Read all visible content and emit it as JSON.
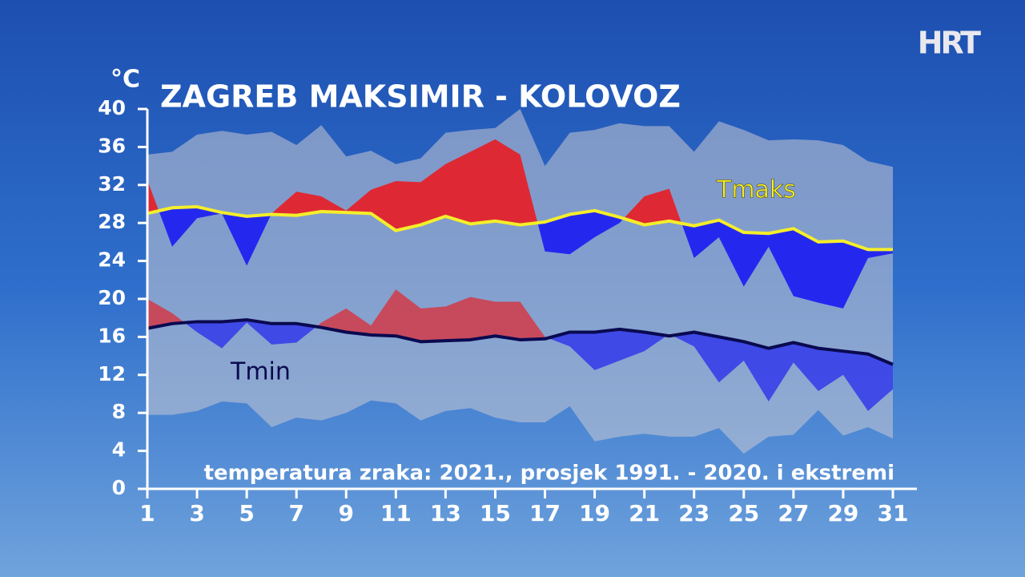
{
  "chart_data": {
    "type": "line",
    "title": "ZAGREB MAKSIMIR - KOLOVOZ",
    "subtitle": "temperatura zraka: 2021., prosjek 1991. - 2020. i ekstremi",
    "y_label": "°C",
    "logo": "HRT",
    "x": [
      1,
      2,
      3,
      4,
      5,
      6,
      7,
      8,
      9,
      10,
      11,
      12,
      13,
      14,
      15,
      16,
      17,
      18,
      19,
      20,
      21,
      22,
      23,
      24,
      25,
      26,
      27,
      28,
      29,
      30,
      31
    ],
    "xlim": [
      1,
      31
    ],
    "xticks": [
      1,
      3,
      5,
      7,
      9,
      11,
      13,
      15,
      17,
      19,
      21,
      23,
      25,
      27,
      29,
      31
    ],
    "ylim": [
      0,
      40
    ],
    "yticks": [
      0,
      4,
      8,
      12,
      16,
      20,
      24,
      28,
      32,
      36,
      40
    ],
    "above_color": "#e3232b",
    "below_color": "#1f22f0",
    "band_color": "#c8c8d2",
    "series": [
      {
        "name": "Tmaks",
        "color": "#f5ee2a",
        "values": [
          29.0,
          29.6,
          29.7,
          29.1,
          28.7,
          28.9,
          28.8,
          29.2,
          29.1,
          29.0,
          27.2,
          27.8,
          28.7,
          27.9,
          28.2,
          27.8,
          28.1,
          28.9,
          29.3,
          28.6,
          27.8,
          28.2,
          27.7,
          28.3,
          27.0,
          26.9,
          27.4,
          26.0,
          26.1,
          25.2,
          25.2
        ],
        "values_2021": [
          32.5,
          25.5,
          28.5,
          29.0,
          23.5,
          29.0,
          31.3,
          30.8,
          29.3,
          31.5,
          32.4,
          32.3,
          34.2,
          35.5,
          36.8,
          35.2,
          25.0,
          24.7,
          26.5,
          28.0,
          30.8,
          31.6,
          24.3,
          26.5,
          21.3,
          25.5,
          20.3,
          19.6,
          19.0,
          24.3,
          24.8
        ],
        "extreme": [
          35.2,
          35.5,
          37.3,
          37.7,
          37.3,
          37.6,
          36.2,
          38.3,
          35.0,
          35.6,
          34.2,
          34.8,
          37.5,
          37.8,
          38.0,
          40.0,
          34.0,
          37.5,
          37.8,
          38.5,
          38.2,
          38.2,
          35.5,
          38.7,
          37.8,
          36.7,
          36.8,
          36.7,
          36.2,
          34.5,
          33.9
        ]
      },
      {
        "name": "Tmin",
        "color": "#0a0a50",
        "values": [
          16.9,
          17.4,
          17.6,
          17.6,
          17.8,
          17.4,
          17.4,
          17.0,
          16.5,
          16.2,
          16.1,
          15.5,
          15.6,
          15.7,
          16.1,
          15.7,
          15.8,
          16.5,
          16.5,
          16.8,
          16.5,
          16.1,
          16.5,
          16.0,
          15.5,
          14.8,
          15.4,
          14.8,
          14.5,
          14.2,
          13.1
        ],
        "values_2021": [
          20.0,
          18.5,
          16.5,
          14.8,
          17.5,
          15.2,
          15.4,
          17.5,
          19.0,
          17.2,
          21.0,
          19.0,
          19.2,
          20.2,
          19.7,
          19.7,
          16.0,
          15.0,
          12.5,
          13.5,
          14.5,
          16.3,
          15.0,
          11.2,
          13.5,
          9.2,
          13.3,
          10.3,
          12.0,
          8.2,
          10.5
        ],
        "extreme": [
          7.8,
          7.8,
          8.2,
          9.2,
          9.0,
          6.5,
          7.5,
          7.2,
          8.0,
          9.3,
          9.0,
          7.2,
          8.2,
          8.5,
          7.5,
          7.0,
          7.0,
          8.7,
          5.0,
          5.5,
          5.8,
          5.5,
          5.5,
          6.4,
          3.7,
          5.5,
          5.7,
          8.3,
          5.6,
          6.5,
          5.3
        ]
      }
    ]
  }
}
